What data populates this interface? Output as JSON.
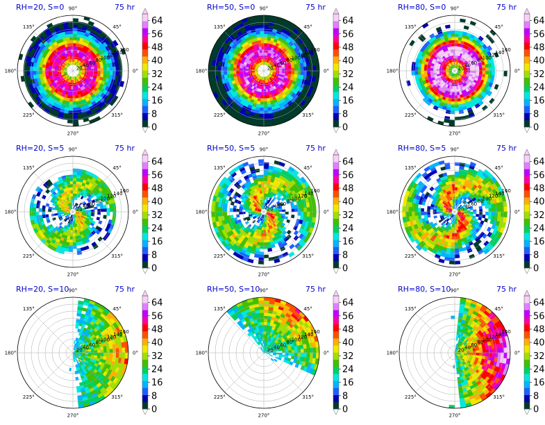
{
  "chart_data": {
    "type": "polar-filled-contour",
    "angle_labels": [
      "90°",
      "45°",
      "0°",
      "315°",
      "270°",
      "225°",
      "180°",
      "135°"
    ],
    "radial_labels": [
      "20",
      "40",
      "60",
      "80",
      "100",
      "120",
      "140",
      "160"
    ],
    "colorbar_ticks": [
      "0",
      "8",
      "16",
      "24",
      "32",
      "40",
      "48",
      "56",
      "64"
    ],
    "colorbar_range": [
      0,
      68
    ],
    "colorbar_colors": [
      "#003a2a",
      "#0000b0",
      "#1f5fff",
      "#00b4ff",
      "#00e8e0",
      "#00d060",
      "#40c000",
      "#a0e000",
      "#f0e800",
      "#ffb000",
      "#ff5000",
      "#ff0000",
      "#ff00a0",
      "#c000ff",
      "#e080ff",
      "#f8d0f8"
    ],
    "panels": [
      {
        "label": "RH=20, S=0",
        "time": "75 hr",
        "pattern": "ring",
        "eye": 0.13,
        "intensity": 0.85,
        "coverage": 0.88
      },
      {
        "label": "RH=50, S=0",
        "time": "75 hr",
        "pattern": "ring",
        "eye": 0.12,
        "intensity": 0.9,
        "coverage": 1.0
      },
      {
        "label": "RH=80, S=0",
        "time": "75 hr",
        "pattern": "ring",
        "eye": 0.07,
        "intensity": 1.0,
        "coverage": 0.7
      },
      {
        "label": "RH=20, S=5",
        "time": "75 hr",
        "pattern": "spiral",
        "eye": 0.08,
        "intensity": 0.75,
        "coverage": 0.8
      },
      {
        "label": "RH=50, S=5",
        "time": "75 hr",
        "pattern": "spiral",
        "eye": 0.07,
        "intensity": 0.85,
        "coverage": 0.95
      },
      {
        "label": "RH=80, S=5",
        "time": "75 hr",
        "pattern": "spiral",
        "eye": 0.08,
        "intensity": 0.95,
        "coverage": 0.95
      },
      {
        "label": "RH=20, S=10",
        "time": "75 hr",
        "pattern": "sheared",
        "eye": 0.0,
        "intensity": 0.6,
        "coverage": 0.55
      },
      {
        "label": "RH=50, S=10",
        "time": "75 hr",
        "pattern": "sheared_north",
        "eye": 0.0,
        "intensity": 0.7,
        "coverage": 0.5
      },
      {
        "label": "RH=80, S=10",
        "time": "75 hr",
        "pattern": "sheared",
        "eye": 0.0,
        "intensity": 0.9,
        "coverage": 0.7
      }
    ]
  }
}
